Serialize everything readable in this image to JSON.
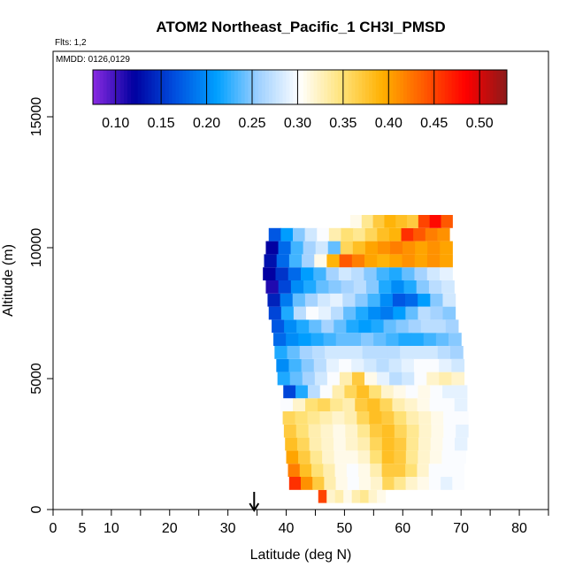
{
  "chart_data": {
    "type": "heatmap",
    "title": "ATOM2 Northeast_Pacific_1 CH3I_PMSD",
    "subtitle_flights": "Flts: 1,2",
    "subtitle_dates": "MMDD: 0126,0129",
    "xlabel": "Latitude (deg N)",
    "ylabel": "Altitude (m)",
    "xlim": [
      0,
      85
    ],
    "ylim": [
      0,
      17500
    ],
    "x_ticks": [
      0,
      5,
      10,
      20,
      30,
      40,
      50,
      60,
      70,
      80
    ],
    "x_minor_ticks": [
      15,
      25,
      35,
      45,
      55,
      65,
      75,
      85
    ],
    "y_ticks": [
      0,
      5000,
      10000,
      15000
    ],
    "colorbar": {
      "range": [
        0.075,
        0.53
      ],
      "ticks": [
        0.1,
        0.15,
        0.2,
        0.25,
        0.3,
        0.35,
        0.4,
        0.45,
        0.5
      ],
      "tick_labels": [
        "0.10",
        "0.15",
        "0.20",
        "0.25",
        "0.30",
        "0.35",
        "0.40",
        "0.45",
        "0.50"
      ],
      "colors": [
        "#8a2be2",
        "#0000a0",
        "#0050e0",
        "#00a0ff",
        "#9fd0ff",
        "#ffffff",
        "#ffe37a",
        "#ffb000",
        "#ff5a00",
        "#ff0000",
        "#8b1a1a"
      ]
    },
    "marker_arrow_latitude": 34.5,
    "layers": [
      {
        "alt": 500,
        "lat_start": 45.5,
        "lat_end": 57,
        "values": [
          0.45,
          0.32,
          0.33,
          0.31,
          0.33,
          0.34,
          0.32,
          0.31
        ]
      },
      {
        "alt": 1000,
        "lat_start": 40.5,
        "lat_end": 70.5,
        "values": [
          0.46,
          0.41,
          0.37,
          0.33,
          0.31,
          0.3,
          0.31,
          0.32,
          0.36,
          0.34,
          0.32,
          0.31,
          0.3,
          0.29,
          0.3
        ]
      },
      {
        "alt": 1500,
        "lat_start": 40.3,
        "lat_end": 70.5,
        "values": [
          0.42,
          0.38,
          0.35,
          0.33,
          0.31,
          0.3,
          0.31,
          0.33,
          0.37,
          0.37,
          0.35,
          0.32,
          0.3,
          0.3,
          0.3
        ]
      },
      {
        "alt": 2000,
        "lat_start": 40.0,
        "lat_end": 70.8,
        "values": [
          0.4,
          0.37,
          0.34,
          0.32,
          0.31,
          0.31,
          0.32,
          0.35,
          0.38,
          0.37,
          0.34,
          0.32,
          0.31,
          0.3,
          0.3
        ]
      },
      {
        "alt": 2500,
        "lat_start": 39.8,
        "lat_end": 71.0,
        "values": [
          0.38,
          0.36,
          0.33,
          0.32,
          0.31,
          0.32,
          0.33,
          0.36,
          0.38,
          0.37,
          0.34,
          0.32,
          0.31,
          0.3,
          0.29
        ]
      },
      {
        "alt": 3000,
        "lat_start": 39.6,
        "lat_end": 71.2,
        "values": [
          0.37,
          0.35,
          0.33,
          0.32,
          0.31,
          0.32,
          0.34,
          0.37,
          0.38,
          0.36,
          0.34,
          0.32,
          0.31,
          0.3,
          0.29
        ]
      },
      {
        "alt": 3500,
        "lat_start": 39.4,
        "lat_end": 71.2,
        "values": [
          0.36,
          0.35,
          0.34,
          0.33,
          0.32,
          0.33,
          0.36,
          0.38,
          0.37,
          0.35,
          0.33,
          0.32,
          0.31,
          0.3,
          0.3
        ]
      },
      {
        "alt": 4000,
        "lat_start": 39.0,
        "lat_end": 71.0,
        "values": [
          0.3,
          0.32,
          0.35,
          0.36,
          0.34,
          0.33,
          0.37,
          0.38,
          0.36,
          0.33,
          0.32,
          0.31,
          0.3,
          0.3,
          0.29
        ]
      },
      {
        "alt": 4500,
        "lat_start": 39.5,
        "lat_end": 71.0,
        "values": [
          0.16,
          0.22,
          0.27,
          0.3,
          0.33,
          0.36,
          0.38,
          0.35,
          0.32,
          0.31,
          0.3,
          0.31,
          0.3,
          0.29,
          0.29
        ]
      },
      {
        "alt": 5000,
        "lat_start": 38.5,
        "lat_end": 70.5,
        "values": [
          0.22,
          0.24,
          0.26,
          0.28,
          0.3,
          0.33,
          0.37,
          0.31,
          0.29,
          0.27,
          0.28,
          0.3,
          0.32,
          0.33,
          0.32
        ]
      },
      {
        "alt": 5500,
        "lat_start": 38.3,
        "lat_end": 70.5,
        "values": [
          0.2,
          0.23,
          0.25,
          0.27,
          0.29,
          0.3,
          0.29,
          0.28,
          0.27,
          0.28,
          0.29,
          0.3,
          0.3,
          0.29,
          0.28
        ]
      },
      {
        "alt": 6000,
        "lat_start": 38.0,
        "lat_end": 70.3,
        "values": [
          0.22,
          0.24,
          0.26,
          0.27,
          0.28,
          0.28,
          0.28,
          0.27,
          0.27,
          0.27,
          0.28,
          0.28,
          0.28,
          0.27,
          0.26
        ]
      },
      {
        "alt": 6500,
        "lat_start": 37.8,
        "lat_end": 70.0,
        "values": [
          0.18,
          0.2,
          0.21,
          0.22,
          0.23,
          0.24,
          0.24,
          0.25,
          0.24,
          0.23,
          0.22,
          0.22,
          0.23,
          0.24,
          0.25
        ]
      },
      {
        "alt": 7000,
        "lat_start": 37.5,
        "lat_end": 69.5,
        "values": [
          0.17,
          0.2,
          0.22,
          0.24,
          0.26,
          0.24,
          0.22,
          0.21,
          0.22,
          0.24,
          0.25,
          0.26,
          0.27,
          0.27,
          0.26
        ]
      },
      {
        "alt": 7500,
        "lat_start": 37.0,
        "lat_end": 69.0,
        "values": [
          0.16,
          0.22,
          0.27,
          0.3,
          0.29,
          0.27,
          0.24,
          0.22,
          0.2,
          0.19,
          0.21,
          0.24,
          0.27,
          0.26,
          0.25
        ]
      },
      {
        "alt": 8000,
        "lat_start": 36.8,
        "lat_end": 69.0,
        "values": [
          0.14,
          0.19,
          0.24,
          0.26,
          0.28,
          0.29,
          0.27,
          0.25,
          0.23,
          0.2,
          0.17,
          0.18,
          0.21,
          0.25,
          0.28
        ]
      },
      {
        "alt": 8500,
        "lat_start": 36.5,
        "lat_end": 68.8,
        "values": [
          0.11,
          0.16,
          0.2,
          0.22,
          0.24,
          0.25,
          0.26,
          0.27,
          0.25,
          0.22,
          0.2,
          0.22,
          0.25,
          0.27,
          0.28
        ]
      },
      {
        "alt": 9000,
        "lat_start": 36.0,
        "lat_end": 68.5,
        "values": [
          0.12,
          0.15,
          0.18,
          0.21,
          0.23,
          0.26,
          0.28,
          0.27,
          0.25,
          0.23,
          0.22,
          0.24,
          0.26,
          0.28,
          0.29
        ]
      },
      {
        "alt": 9500,
        "lat_start": 36.2,
        "lat_end": 68.5,
        "values": [
          0.13,
          0.18,
          0.23,
          0.26,
          0.31,
          0.39,
          0.44,
          0.42,
          0.4,
          0.39,
          0.4,
          0.41,
          0.4,
          0.41,
          0.4
        ]
      },
      {
        "alt": 10000,
        "lat_start": 36.5,
        "lat_end": 68.5,
        "values": [
          0.12,
          0.18,
          0.23,
          0.26,
          0.28,
          0.24,
          0.36,
          0.38,
          0.4,
          0.41,
          0.42,
          0.41,
          0.4,
          0.41,
          0.4
        ]
      },
      {
        "alt": 10500,
        "lat_start": 37.0,
        "lat_end": 68.0,
        "values": [
          0.17,
          0.21,
          0.25,
          0.28,
          0.3,
          0.33,
          0.35,
          0.34,
          0.36,
          0.38,
          0.39,
          0.46,
          0.44,
          0.42,
          0.41
        ]
      },
      {
        "alt": 11000,
        "lat_start": 51.0,
        "lat_end": 68.5,
        "values": [
          0.31,
          0.34,
          0.37,
          0.39,
          0.38,
          0.37,
          0.45,
          0.48,
          0.44
        ]
      }
    ]
  }
}
